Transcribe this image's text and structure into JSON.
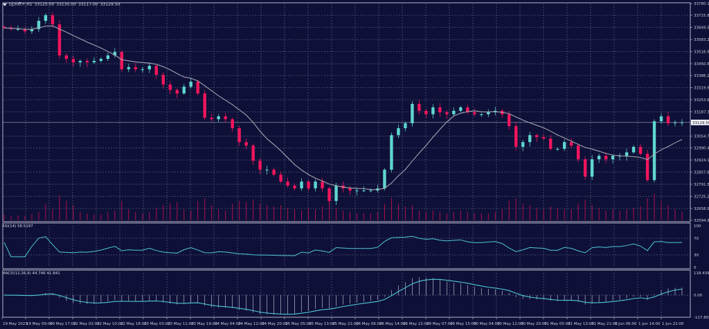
{
  "header": {
    "symbol": "DJ30ft+,H1",
    "open": "33125.00",
    "high": "33135.00",
    "low": "33117.00",
    "close": "33129.50",
    "icon": "triangle-down-icon"
  },
  "colors": {
    "background": "#0e1038",
    "grid": "#50547a",
    "bull": "#5fd6cf",
    "bear": "#f2155c",
    "moving_average": "#a4a4b0",
    "indicator_line": "#4fc9d4",
    "volume": "#b0104a",
    "axis_text": "#d0d0e0"
  },
  "chart_data": [
    {
      "type": "candlestick",
      "panel": "price",
      "ylim": [
        32594.55,
        33780.15
      ],
      "y_ticks": [
        "33780.15",
        "33715.80",
        "33649.50",
        "33583.20",
        "33516.90",
        "33450.60",
        "33386.25",
        "33319.95",
        "33253.65",
        "33187.35",
        "33054.75",
        "32990.40",
        "32924.10",
        "32857.80",
        "32791.50",
        "32725.20",
        "32658.90",
        "32594.55"
      ],
      "y_tick_values": [
        33780.15,
        33715.8,
        33649.5,
        33583.2,
        33516.9,
        33450.6,
        33386.25,
        33319.95,
        33253.65,
        33187.35,
        33054.75,
        32990.4,
        32924.1,
        32857.8,
        32791.5,
        32725.2,
        32658.9,
        32594.55
      ],
      "current_price": "33129.50",
      "current_price_value": 33129.5,
      "x_ticks": [
        "19 May 2023",
        "19 May 09:00",
        "19 May 17:00",
        "22 May 02:00",
        "22 May 10:00",
        "22 May 18:00",
        "23 May 03:00",
        "23 May 11:00",
        "23 May 19:00",
        "24 May 04:00",
        "24 May 12:00",
        "24 May 20:00",
        "25 May 05:00",
        "25 May 13:00",
        "25 May 21:00",
        "26 May 06:00",
        "26 May 14:00",
        "26 May 22:00",
        "29 May 07:00",
        "29 May 15:00",
        "30 May 04:00",
        "30 May 12:00",
        "30 May 20:00",
        "31 May 05:00",
        "31 May 13:00",
        "31 May 21:00",
        "1 Jun 06:00",
        "1 Jun 14:00",
        "1 Jun 22:00"
      ],
      "close": [
        33647,
        33640,
        33640,
        33628,
        33640,
        33685,
        33716,
        33666,
        33496,
        33477,
        33458,
        33466,
        33458,
        33466,
        33477,
        33496,
        33515,
        33420,
        33432,
        33420,
        33420,
        33439,
        33390,
        33337,
        33307,
        33288,
        33325,
        33352,
        33288,
        33155,
        33147,
        33163,
        33147,
        33098,
        33022,
        33003,
        32920,
        32871,
        32871,
        32844,
        32806,
        32784,
        32769,
        32806,
        32769,
        32806,
        32769,
        32700,
        32784,
        32769,
        32757,
        32757,
        32757,
        32757,
        32769,
        32871,
        33060,
        33098,
        33125,
        33231,
        33193,
        33174,
        33212,
        33185,
        33174,
        33193,
        33212,
        33185,
        33174,
        33174,
        33185,
        33193,
        33174,
        33110,
        32996,
        33022,
        33060,
        33049,
        33041,
        32985,
        32985,
        33022,
        33003,
        32928,
        32833,
        32928,
        32947,
        32928,
        32947,
        32947,
        32966,
        32996,
        32958,
        32814,
        33136,
        33163,
        33125,
        33129,
        33129.5
      ],
      "volume_relative": [
        20,
        15,
        18,
        15,
        22,
        30,
        60,
        40,
        90,
        70,
        55,
        30,
        25,
        20,
        22,
        30,
        35,
        70,
        40,
        30,
        25,
        30,
        45,
        55,
        60,
        65,
        40,
        35,
        70,
        80,
        55,
        40,
        35,
        60,
        70,
        65,
        75,
        60,
        55,
        50,
        55,
        45,
        40,
        35,
        45,
        40,
        50,
        70,
        45,
        35,
        30,
        25,
        25,
        25,
        30,
        60,
        80,
        60,
        50,
        55,
        35,
        30,
        35,
        30,
        25,
        30,
        35,
        30,
        25,
        25,
        25,
        30,
        40,
        70,
        80,
        60,
        55,
        45,
        40,
        50,
        45,
        40,
        40,
        60,
        75,
        55,
        45,
        35,
        40,
        35,
        40,
        45,
        50,
        80,
        95,
        70,
        55,
        40,
        30
      ]
    },
    {
      "type": "line",
      "panel": "rsi",
      "label": "RSI(14) 58.5197",
      "ylim": [
        0,
        100
      ],
      "y_ticks": [
        "100",
        "70",
        "30",
        "0"
      ],
      "y_tick_values": [
        100,
        70,
        30,
        0
      ]
    },
    {
      "type": "bar+line",
      "panel": "macd",
      "label": "MACD(12,26,9) 44.746 41.841",
      "ylim": [
        -117.805,
        118.439
      ],
      "y_ticks": [
        "118.439",
        "0.00",
        "-117.805"
      ],
      "y_tick_values": [
        118.439,
        0,
        -117.805
      ]
    }
  ]
}
